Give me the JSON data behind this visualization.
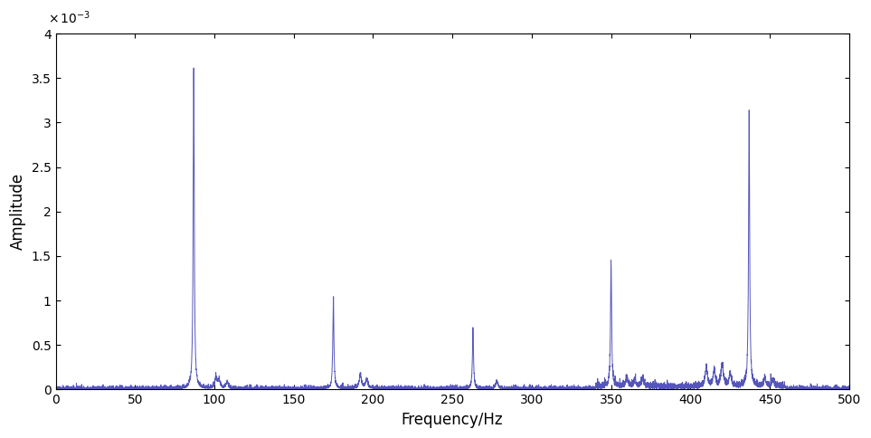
{
  "title": "",
  "xlabel": "Frequency/Hz",
  "ylabel": "Amplitude",
  "xlim": [
    0,
    500
  ],
  "ylim": [
    0,
    0.004
  ],
  "yticks": [
    0,
    0.0005,
    0.001,
    0.0015,
    0.002,
    0.0025,
    0.003,
    0.0035,
    0.004
  ],
  "ytick_labels": [
    "0",
    "0.5",
    "1",
    "1.5",
    "2",
    "2.5",
    "3",
    "3.5",
    "4"
  ],
  "xticks": [
    0,
    50,
    100,
    150,
    200,
    250,
    300,
    350,
    400,
    450,
    500
  ],
  "line_color": "#5555bb",
  "background_color": "#ffffff",
  "peaks": [
    {
      "freq": 87,
      "amp": 0.00358
    },
    {
      "freq": 175,
      "amp": 0.00104
    },
    {
      "freq": 263,
      "amp": 0.00065
    },
    {
      "freq": 350,
      "amp": 0.00143
    },
    {
      "freq": 437,
      "amp": 0.00312
    }
  ],
  "noise_level": 1.8e-05,
  "seed": 42,
  "figsize": [
    9.63,
    4.84
  ],
  "dpi": 100,
  "npoints": 8000
}
